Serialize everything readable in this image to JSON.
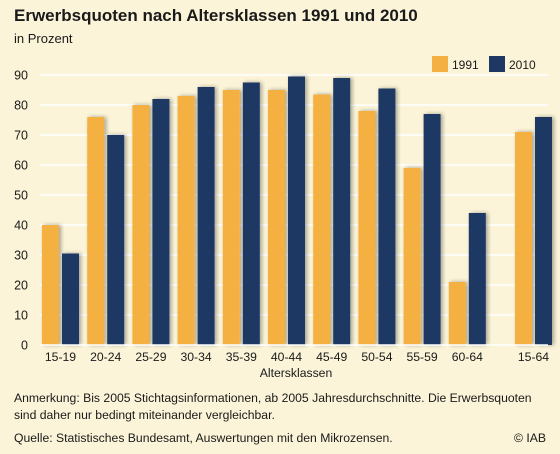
{
  "header": {
    "title": "Erwerbsquoten nach Altersklassen 1991 und 2010",
    "subtitle": "in Prozent"
  },
  "footer": {
    "note": "Anmerkung: Bis 2005 Stichtagsinformationen, ab 2005 Jahresdurchschnitte. Die Erwerbsquoten sind daher nur bedingt miteinander vergleichbar.",
    "source": "Quelle: Statistisches Bundesamt, Auswertungen mit den Mikrozensen.",
    "copyright": "© IAB"
  },
  "chart_data": {
    "type": "bar",
    "title": "Erwerbsquoten nach Altersklassen 1991 und 2010",
    "subtitle": "in Prozent",
    "xlabel": "Altersklassen",
    "ylabel": "",
    "ylim": [
      0,
      90
    ],
    "yticks": [
      0,
      10,
      20,
      30,
      40,
      50,
      60,
      70,
      80,
      90
    ],
    "grid": true,
    "legend_position": "top-right",
    "categories": [
      "15-19",
      "20-24",
      "25-29",
      "30-34",
      "35-39",
      "40-44",
      "45-49",
      "50-54",
      "55-59",
      "60-64",
      "15-64"
    ],
    "series": [
      {
        "name": "1991",
        "color": "#f5b043",
        "values": [
          40,
          76,
          80,
          83,
          85,
          85,
          83.5,
          78,
          59,
          21,
          71
        ]
      },
      {
        "name": "2010",
        "color": "#1f3863",
        "values": [
          30.5,
          70,
          82,
          86,
          87.5,
          89.5,
          89,
          85.5,
          77,
          44,
          76
        ]
      }
    ]
  }
}
